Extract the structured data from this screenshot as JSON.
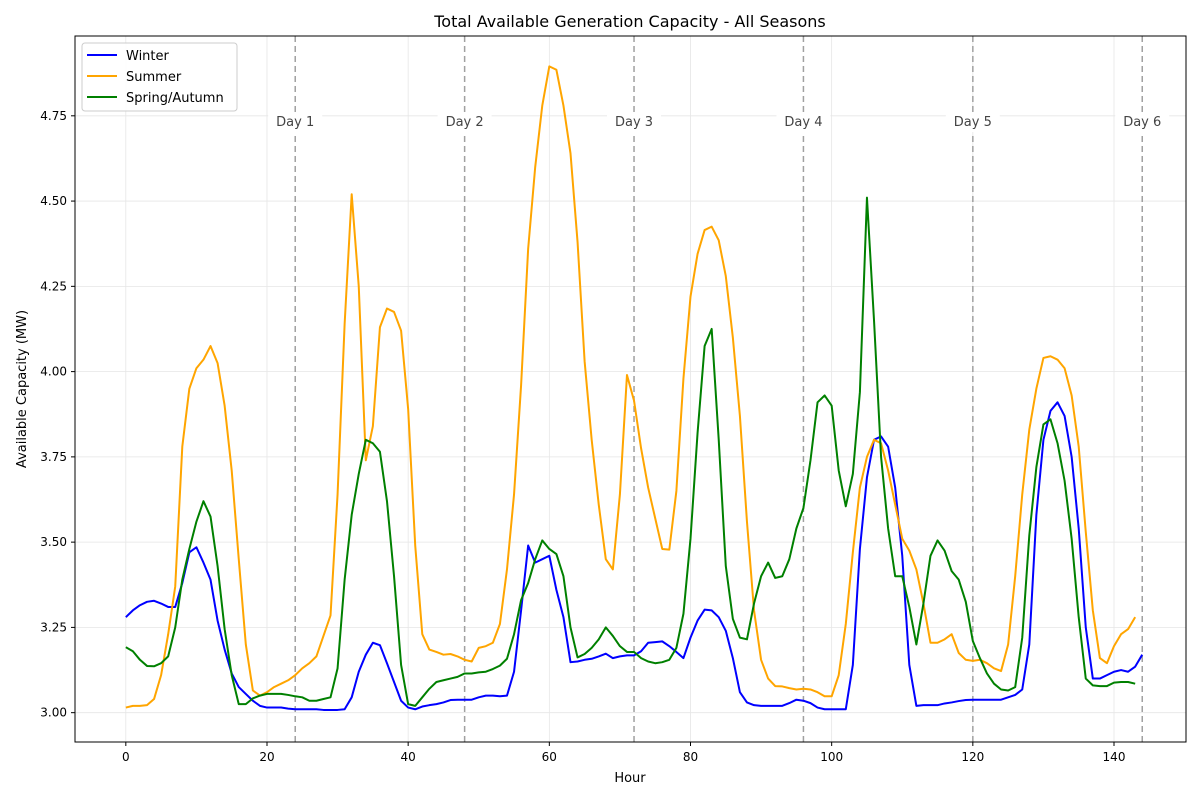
{
  "chart_data": {
    "type": "line",
    "title": "Total Available Generation Capacity - All Seasons",
    "xlabel": "Hour",
    "ylabel": "Available Capacity (MW)",
    "xlim": [
      -7.2,
      150.2
    ],
    "ylim": [
      2.914,
      4.984
    ],
    "xticks": [
      0,
      20,
      40,
      60,
      80,
      100,
      120,
      140
    ],
    "yticks": [
      3.0,
      3.25,
      3.5,
      3.75,
      4.0,
      4.25,
      4.5,
      4.75
    ],
    "ytick_labels": [
      "3.00",
      "3.25",
      "3.50",
      "3.75",
      "4.00",
      "4.25",
      "4.50",
      "4.75"
    ],
    "grid": true,
    "legend_position": "top-left",
    "day_markers": [
      {
        "x": 24,
        "label": "Day 1"
      },
      {
        "x": 48,
        "label": "Day 2"
      },
      {
        "x": 72,
        "label": "Day 3"
      },
      {
        "x": 96,
        "label": "Day 4"
      },
      {
        "x": 120,
        "label": "Day 5"
      },
      {
        "x": 144,
        "label": "Day 6"
      }
    ],
    "series": [
      {
        "name": "Winter",
        "color": "#0000ff",
        "values": [
          3.28,
          3.3,
          3.315,
          3.325,
          3.328,
          3.32,
          3.31,
          3.31,
          3.38,
          3.47,
          3.485,
          3.44,
          3.39,
          3.27,
          3.185,
          3.115,
          3.075,
          3.055,
          3.035,
          3.02,
          3.015,
          3.015,
          3.015,
          3.012,
          3.01,
          3.01,
          3.01,
          3.01,
          3.008,
          3.008,
          3.008,
          3.01,
          3.045,
          3.12,
          3.17,
          3.205,
          3.198,
          3.145,
          3.09,
          3.035,
          3.015,
          3.01,
          3.018,
          3.022,
          3.025,
          3.03,
          3.037,
          3.038,
          3.038,
          3.038,
          3.045,
          3.05,
          3.05,
          3.048,
          3.05,
          3.12,
          3.3,
          3.49,
          3.44,
          3.45,
          3.46,
          3.36,
          3.28,
          3.148,
          3.15,
          3.155,
          3.158,
          3.165,
          3.173,
          3.16,
          3.165,
          3.168,
          3.168,
          3.18,
          3.205,
          3.207,
          3.209,
          3.195,
          3.178,
          3.16,
          3.22,
          3.27,
          3.302,
          3.3,
          3.28,
          3.24,
          3.16,
          3.06,
          3.03,
          3.022,
          3.02,
          3.02,
          3.02,
          3.02,
          3.028,
          3.038,
          3.035,
          3.028,
          3.015,
          3.01,
          3.01,
          3.01,
          3.01,
          3.14,
          3.48,
          3.69,
          3.8,
          3.81,
          3.78,
          3.66,
          3.46,
          3.14,
          3.02,
          3.022,
          3.022,
          3.022,
          3.027,
          3.03,
          3.034,
          3.037,
          3.038,
          3.038,
          3.038,
          3.038,
          3.038,
          3.045,
          3.052,
          3.068,
          3.2,
          3.58,
          3.8,
          3.885,
          3.91,
          3.87,
          3.75,
          3.54,
          3.25,
          3.1,
          3.1,
          3.11,
          3.12,
          3.125,
          3.12,
          3.135,
          3.17
        ]
      },
      {
        "name": "Summer",
        "color": "#ffa500",
        "values": [
          3.015,
          3.02,
          3.02,
          3.022,
          3.04,
          3.11,
          3.23,
          3.37,
          3.78,
          3.95,
          4.01,
          4.035,
          4.075,
          4.025,
          3.9,
          3.71,
          3.45,
          3.2,
          3.065,
          3.05,
          3.06,
          3.075,
          3.085,
          3.095,
          3.11,
          3.13,
          3.145,
          3.165,
          3.225,
          3.285,
          3.64,
          4.14,
          4.52,
          4.25,
          3.74,
          3.84,
          4.13,
          4.185,
          4.175,
          4.12,
          3.89,
          3.49,
          3.23,
          3.185,
          3.178,
          3.17,
          3.172,
          3.165,
          3.155,
          3.15,
          3.19,
          3.195,
          3.205,
          3.26,
          3.42,
          3.64,
          3.96,
          4.36,
          4.6,
          4.78,
          4.895,
          4.885,
          4.78,
          4.64,
          4.38,
          4.03,
          3.8,
          3.61,
          3.45,
          3.42,
          3.64,
          3.99,
          3.915,
          3.775,
          3.66,
          3.57,
          3.48,
          3.478,
          3.65,
          3.98,
          4.22,
          4.345,
          4.415,
          4.425,
          4.385,
          4.28,
          4.1,
          3.87,
          3.56,
          3.3,
          3.155,
          3.1,
          3.078,
          3.077,
          3.072,
          3.068,
          3.07,
          3.068,
          3.06,
          3.048,
          3.048,
          3.11,
          3.26,
          3.47,
          3.66,
          3.75,
          3.8,
          3.79,
          3.71,
          3.61,
          3.51,
          3.475,
          3.42,
          3.32,
          3.205,
          3.205,
          3.215,
          3.23,
          3.175,
          3.155,
          3.152,
          3.155,
          3.145,
          3.13,
          3.122,
          3.2,
          3.4,
          3.64,
          3.83,
          3.95,
          4.04,
          4.045,
          4.035,
          4.01,
          3.93,
          3.78,
          3.53,
          3.3,
          3.16,
          3.145,
          3.195,
          3.23,
          3.245,
          3.28
        ]
      },
      {
        "name": "Spring/Autumn",
        "color": "#008000",
        "values": [
          3.192,
          3.18,
          3.155,
          3.137,
          3.136,
          3.145,
          3.165,
          3.25,
          3.39,
          3.48,
          3.56,
          3.62,
          3.575,
          3.43,
          3.245,
          3.11,
          3.025,
          3.025,
          3.042,
          3.05,
          3.055,
          3.055,
          3.055,
          3.052,
          3.048,
          3.045,
          3.035,
          3.035,
          3.04,
          3.045,
          3.13,
          3.39,
          3.58,
          3.7,
          3.8,
          3.79,
          3.765,
          3.62,
          3.4,
          3.14,
          3.025,
          3.02,
          3.045,
          3.07,
          3.09,
          3.095,
          3.1,
          3.105,
          3.115,
          3.115,
          3.118,
          3.12,
          3.128,
          3.138,
          3.158,
          3.23,
          3.33,
          3.38,
          3.45,
          3.505,
          3.48,
          3.465,
          3.4,
          3.25,
          3.162,
          3.172,
          3.19,
          3.215,
          3.25,
          3.225,
          3.195,
          3.178,
          3.178,
          3.16,
          3.15,
          3.145,
          3.148,
          3.155,
          3.19,
          3.29,
          3.51,
          3.82,
          4.075,
          4.125,
          3.8,
          3.43,
          3.275,
          3.22,
          3.215,
          3.32,
          3.4,
          3.44,
          3.395,
          3.4,
          3.45,
          3.54,
          3.6,
          3.74,
          3.91,
          3.93,
          3.9,
          3.71,
          3.605,
          3.7,
          3.94,
          4.51,
          4.15,
          3.75,
          3.54,
          3.4,
          3.4,
          3.31,
          3.2,
          3.32,
          3.46,
          3.505,
          3.475,
          3.415,
          3.39,
          3.325,
          3.21,
          3.16,
          3.115,
          3.085,
          3.068,
          3.065,
          3.075,
          3.22,
          3.52,
          3.72,
          3.845,
          3.86,
          3.79,
          3.68,
          3.51,
          3.28,
          3.1,
          3.08,
          3.078,
          3.078,
          3.088,
          3.09,
          3.09,
          3.085
        ]
      }
    ]
  }
}
